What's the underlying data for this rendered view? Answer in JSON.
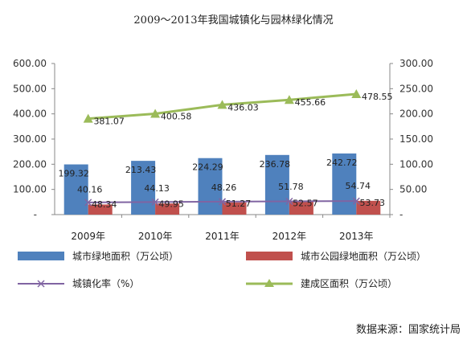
{
  "chart_data": {
    "type": "bar",
    "title": "2009～2013年我国城镇化与园林绿化情况",
    "categories": [
      "2009年",
      "2010年",
      "2011年",
      "2012年",
      "2013年"
    ],
    "left_axis": {
      "ylim": [
        0,
        600
      ],
      "ticks": [
        "-",
        "100.00",
        "200.00",
        "300.00",
        "400.00",
        "500.00",
        "600.00"
      ]
    },
    "right_axis": {
      "ylim": [
        0,
        300
      ],
      "ticks": [
        "-",
        "50.00",
        "100.00",
        "150.00",
        "200.00",
        "250.00",
        "300.00"
      ]
    },
    "series": [
      {
        "name": "城市绿地面积（万公顷）",
        "type": "bar",
        "axis": "left",
        "color": "#4f81bd",
        "values": [
          199.32,
          213.43,
          224.29,
          236.78,
          242.72
        ],
        "labels": [
          "199.32",
          "213.43",
          "224.29",
          "236.78",
          "242.72"
        ]
      },
      {
        "name": "城市公园绿地面积（万公顷）",
        "type": "bar",
        "axis": "left",
        "color": "#c0504d",
        "values": [
          40.16,
          44.13,
          48.26,
          51.78,
          54.74
        ],
        "labels": [
          "40.16",
          "44.13",
          "48.26",
          "51.78",
          "54.74"
        ]
      },
      {
        "name": "城镇化率（%）",
        "type": "line",
        "axis": "left",
        "color": "#8064a2",
        "marker": "x",
        "values": [
          48.34,
          49.95,
          51.27,
          52.57,
          53.73
        ],
        "labels": [
          "48.34",
          "49.95",
          "51.27",
          "52.57",
          "53.73"
        ]
      },
      {
        "name": "建成区面积（万公顷）",
        "type": "line",
        "axis": "right",
        "color": "#9bbb59",
        "marker": "triangle",
        "values": [
          381.07,
          400.58,
          436.03,
          455.66,
          478.55
        ],
        "labels": [
          "381.07",
          "400.58",
          "436.03",
          "455.66",
          "478.55"
        ]
      }
    ],
    "legend_position": "bottom",
    "grid": false
  },
  "source_note": "数据来源：国家统计局"
}
